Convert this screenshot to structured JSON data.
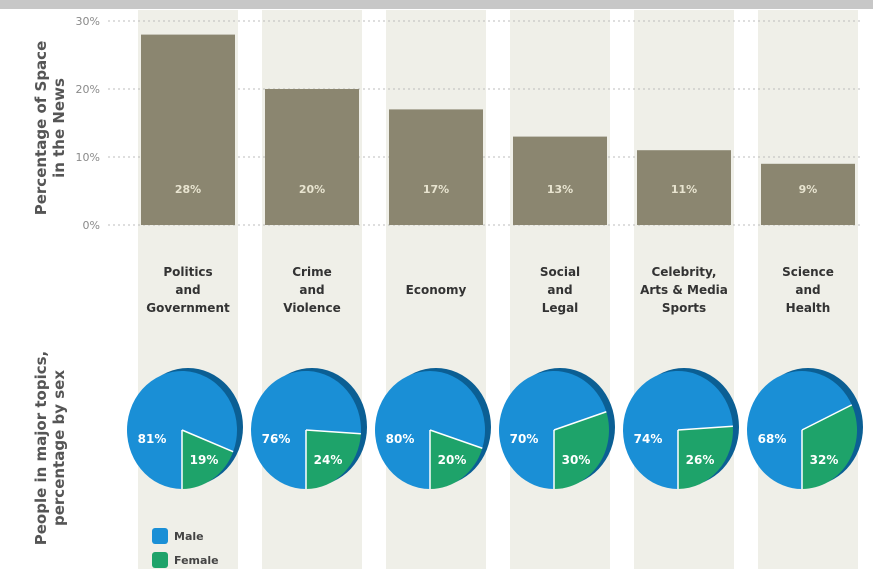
{
  "chart_data": [
    {
      "type": "bar",
      "ylabel": "Percentage of Space\nin the News",
      "ylim": [
        0,
        30
      ],
      "y_ticks": [
        "30%",
        "20%",
        "10%",
        "0%"
      ],
      "categories": [
        "Politics\nand\nGovernment",
        "Crime\nand\nViolence",
        "Economy",
        "Social\nand\nLegal",
        "Celebrity,\nArts & Media\nSports",
        "Science\nand\nHealth"
      ],
      "values": [
        28,
        20,
        17,
        13,
        11,
        9
      ],
      "data_labels": [
        "28%",
        "20%",
        "17%",
        "13%",
        "11%",
        "9%"
      ],
      "bar_color": "#8b8670",
      "grid": false
    },
    {
      "type": "pie",
      "ylabel": "People in major topics,\npercentage by sex",
      "series": [
        {
          "name": "Male",
          "color": "#1a8fd6",
          "values": [
            81,
            76,
            80,
            70,
            74,
            68
          ]
        },
        {
          "name": "Female",
          "color": "#1ea36a",
          "values": [
            19,
            24,
            20,
            30,
            26,
            32
          ]
        }
      ],
      "categories": [
        "Politics and Government",
        "Crime and Violence",
        "Economy",
        "Social and Legal",
        "Celebrity, Arts & Media Sports",
        "Science and Health"
      ],
      "labels_male": [
        "81%",
        "76%",
        "80%",
        "70%",
        "74%",
        "68%"
      ],
      "labels_female": [
        "19%",
        "24%",
        "20%",
        "30%",
        "26%",
        "32%"
      ]
    }
  ],
  "legend": {
    "male_label": "Male",
    "female_label": "Female",
    "male_color": "#1a8fd6",
    "female_color": "#1ea36a"
  }
}
